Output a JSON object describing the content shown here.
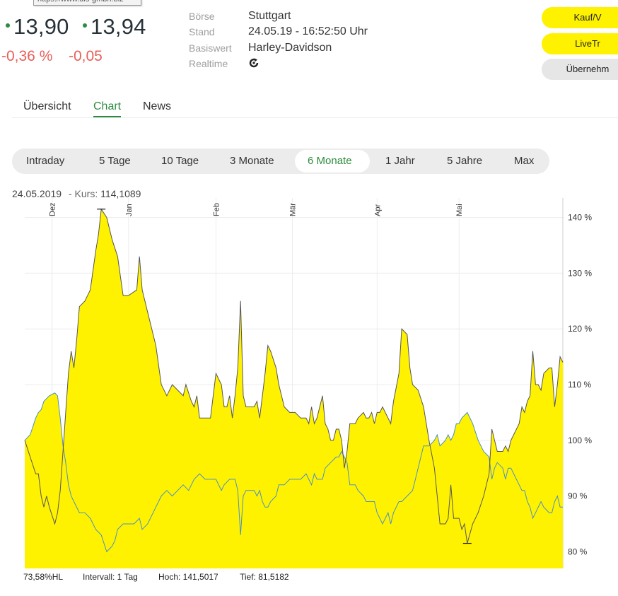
{
  "tooltip_text": "https://www.dls-gmbh.biz",
  "quote": {
    "bid": "13,90",
    "ask": "13,94",
    "change_pct": "-0,36 %",
    "change_abs": "-0,05"
  },
  "info": [
    {
      "label": "Börse",
      "value": "Stuttgart"
    },
    {
      "label": "Stand",
      "value": "24.05.19 - 16:52:50 Uhr"
    },
    {
      "label": "Basiswert",
      "value": "Harley-Davidson"
    },
    {
      "label": "Realtime",
      "value": ""
    }
  ],
  "actions": [
    "Kauf/V",
    "LiveTr",
    "Übernehm"
  ],
  "tabs": [
    "Übersicht",
    "Chart",
    "News"
  ],
  "active_tab": "Chart",
  "ranges": [
    "Intraday",
    "5 Tage",
    "10 Tage",
    "3 Monate",
    "6 Monate",
    "1 Jahr",
    "5 Jahre",
    "Max"
  ],
  "active_range": "6 Monate",
  "kurs_line": {
    "date": "24.05.2019",
    "label": "Kurs:",
    "value": "114,1089"
  },
  "footer": {
    "hl": "73,58%HL",
    "intervall": "Intervall: 1 Tag",
    "hoch": "Hoch: 141,5017",
    "tief": "Tief: 81,5182"
  },
  "colors": {
    "fill": "#fff200",
    "line_main": "#555555",
    "line_base": "#4a90c8",
    "accent": "#2e8b3e",
    "negative": "#e8605a"
  },
  "chart_data": {
    "type": "area",
    "y_axis": {
      "min": 77,
      "max": 143,
      "ticks": [
        80,
        90,
        100,
        110,
        120,
        130,
        140
      ],
      "tick_labels": [
        "80 %",
        "90 %",
        "100 %",
        "110 %",
        "120 %",
        "130 %",
        "140 %"
      ]
    },
    "month_labels": [
      {
        "label": "Dez",
        "day": 10
      },
      {
        "label": "Jan",
        "day": 38
      },
      {
        "label": "Feb",
        "day": 70
      },
      {
        "label": "Mär",
        "day": 98
      },
      {
        "label": "Apr",
        "day": 129
      },
      {
        "label": "Mai",
        "day": 159
      }
    ],
    "x_days": 186,
    "series": [
      {
        "points": [
          [
            0,
            100
          ],
          [
            2,
            97
          ],
          [
            4,
            94
          ],
          [
            5,
            94
          ],
          [
            6,
            90
          ],
          [
            7,
            88
          ],
          [
            8,
            90
          ],
          [
            9,
            88
          ],
          [
            11,
            85
          ],
          [
            12,
            87
          ],
          [
            13,
            91
          ],
          [
            14,
            98
          ],
          [
            15,
            105
          ],
          [
            16,
            112
          ],
          [
            17,
            116
          ],
          [
            18,
            113
          ],
          [
            19,
            118
          ],
          [
            20,
            124
          ],
          [
            22,
            125
          ],
          [
            24,
            127
          ],
          [
            26,
            134
          ],
          [
            27,
            137
          ],
          [
            28,
            141.5
          ],
          [
            30,
            140
          ],
          [
            32,
            136
          ],
          [
            34,
            133
          ],
          [
            36,
            126
          ],
          [
            38,
            126
          ],
          [
            41,
            127
          ],
          [
            42,
            133
          ],
          [
            43,
            127
          ],
          [
            45,
            123
          ],
          [
            48,
            117
          ],
          [
            50,
            110
          ],
          [
            52,
            108
          ],
          [
            54,
            110
          ],
          [
            56,
            109
          ],
          [
            58,
            108
          ],
          [
            59,
            110
          ],
          [
            61,
            107
          ],
          [
            62,
            106
          ],
          [
            63,
            108
          ],
          [
            64,
            104
          ],
          [
            66,
            104
          ],
          [
            68,
            104
          ],
          [
            69,
            108
          ],
          [
            70,
            112
          ],
          [
            72,
            110
          ],
          [
            73,
            106
          ],
          [
            74,
            106
          ],
          [
            75,
            108
          ],
          [
            76,
            104
          ],
          [
            77,
            108
          ],
          [
            78,
            113
          ],
          [
            79,
            125
          ],
          [
            80,
            108
          ],
          [
            81,
            106
          ],
          [
            82,
            106
          ],
          [
            84,
            106
          ],
          [
            85,
            107
          ],
          [
            86,
            104
          ],
          [
            87,
            108
          ],
          [
            88,
            112
          ],
          [
            89,
            117
          ],
          [
            90,
            116
          ],
          [
            92,
            113
          ],
          [
            93,
            110
          ],
          [
            95,
            106
          ],
          [
            97,
            105
          ],
          [
            99,
            105
          ],
          [
            101,
            104
          ],
          [
            103,
            104
          ],
          [
            104,
            103
          ],
          [
            105,
            106
          ],
          [
            106,
            103
          ],
          [
            107,
            104
          ],
          [
            109,
            108
          ],
          [
            110,
            103
          ],
          [
            111,
            102
          ],
          [
            112,
            100
          ],
          [
            113,
            100
          ],
          [
            114,
            102
          ],
          [
            115,
            102
          ],
          [
            116,
            100
          ],
          [
            117,
            95
          ],
          [
            118,
            98
          ],
          [
            119,
            103
          ],
          [
            121,
            103
          ],
          [
            122,
            104
          ],
          [
            124,
            105
          ],
          [
            125,
            104
          ],
          [
            126,
            104
          ],
          [
            127,
            105
          ],
          [
            128,
            103
          ],
          [
            129,
            105
          ],
          [
            130,
            105
          ],
          [
            131,
            106
          ],
          [
            133,
            104
          ],
          [
            134,
            103
          ],
          [
            135,
            107
          ],
          [
            137,
            112
          ],
          [
            138,
            120
          ],
          [
            140,
            119
          ],
          [
            141,
            113
          ],
          [
            142,
            110
          ],
          [
            144,
            109
          ],
          [
            146,
            106
          ],
          [
            148,
            100
          ],
          [
            150,
            95
          ],
          [
            151,
            90
          ],
          [
            152,
            85
          ],
          [
            154,
            85
          ],
          [
            155,
            86
          ],
          [
            156,
            92
          ],
          [
            157,
            86
          ],
          [
            158,
            86
          ],
          [
            159,
            86
          ],
          [
            160,
            84
          ],
          [
            161,
            85
          ],
          [
            162,
            81.5
          ],
          [
            164,
            85
          ],
          [
            166,
            87
          ],
          [
            168,
            90
          ],
          [
            170,
            94
          ],
          [
            171,
            102
          ],
          [
            172,
            100
          ],
          [
            173,
            98
          ],
          [
            175,
            98
          ],
          [
            176,
            99
          ],
          [
            177,
            98
          ],
          [
            178,
            100
          ],
          [
            179,
            101
          ],
          [
            181,
            103
          ],
          [
            182,
            106
          ],
          [
            183,
            105
          ],
          [
            184,
            107
          ],
          [
            185,
            108
          ],
          [
            186,
            116
          ],
          [
            187,
            110
          ],
          [
            188,
            110
          ],
          [
            189,
            109
          ],
          [
            190,
            112
          ],
          [
            192,
            113
          ],
          [
            193,
            113
          ],
          [
            194,
            106
          ],
          [
            195,
            110
          ],
          [
            196,
            115
          ],
          [
            197,
            114
          ]
        ]
      },
      {
        "points": [
          [
            0,
            100
          ],
          [
            2,
            101
          ],
          [
            4,
            104
          ],
          [
            5,
            105
          ],
          [
            6,
            105.5
          ],
          [
            7,
            107
          ],
          [
            9,
            108
          ],
          [
            11,
            108.5
          ],
          [
            12,
            108
          ],
          [
            13,
            104
          ],
          [
            14,
            99
          ],
          [
            15,
            96
          ],
          [
            16,
            92
          ],
          [
            17,
            90
          ],
          [
            18,
            89
          ],
          [
            20,
            87
          ],
          [
            22,
            87
          ],
          [
            24,
            86
          ],
          [
            25,
            85
          ],
          [
            26,
            84
          ],
          [
            28,
            83
          ],
          [
            30,
            80
          ],
          [
            32,
            81
          ],
          [
            33,
            82
          ],
          [
            34,
            84
          ],
          [
            36,
            85
          ],
          [
            38,
            85
          ],
          [
            40,
            85
          ],
          [
            42,
            86
          ],
          [
            43,
            84
          ],
          [
            45,
            85
          ],
          [
            48,
            88
          ],
          [
            50,
            90
          ],
          [
            52,
            91
          ],
          [
            54,
            90
          ],
          [
            56,
            91
          ],
          [
            58,
            92
          ],
          [
            60,
            91
          ],
          [
            62,
            93
          ],
          [
            64,
            94
          ],
          [
            66,
            93
          ],
          [
            68,
            93
          ],
          [
            70,
            93
          ],
          [
            72,
            91
          ],
          [
            73,
            92
          ],
          [
            75,
            93
          ],
          [
            77,
            93
          ],
          [
            78,
            91
          ],
          [
            79,
            83
          ],
          [
            80,
            90
          ],
          [
            81,
            91
          ],
          [
            82,
            91
          ],
          [
            84,
            91
          ],
          [
            85,
            90
          ],
          [
            86,
            91
          ],
          [
            87,
            89
          ],
          [
            88,
            88
          ],
          [
            89,
            88
          ],
          [
            90,
            89
          ],
          [
            92,
            90
          ],
          [
            93,
            92
          ],
          [
            95,
            92
          ],
          [
            97,
            93
          ],
          [
            99,
            93
          ],
          [
            101,
            93
          ],
          [
            103,
            94
          ],
          [
            104,
            93
          ],
          [
            105,
            92
          ],
          [
            106,
            94
          ],
          [
            107,
            93
          ],
          [
            109,
            93
          ],
          [
            110,
            95
          ],
          [
            112,
            96
          ],
          [
            114,
            97
          ],
          [
            115,
            97
          ],
          [
            116,
            98
          ],
          [
            117,
            97
          ],
          [
            118,
            96
          ],
          [
            119,
            92
          ],
          [
            121,
            92
          ],
          [
            122,
            91
          ],
          [
            124,
            90
          ],
          [
            125,
            89
          ],
          [
            126,
            89
          ],
          [
            127,
            89
          ],
          [
            128,
            89
          ],
          [
            129,
            87
          ],
          [
            131,
            85
          ],
          [
            133,
            87
          ],
          [
            134,
            85
          ],
          [
            135,
            87
          ],
          [
            137,
            89
          ],
          [
            138,
            89
          ],
          [
            140,
            90
          ],
          [
            142,
            91
          ],
          [
            144,
            95
          ],
          [
            146,
            99
          ],
          [
            148,
            99
          ],
          [
            150,
            100
          ],
          [
            151,
            101
          ],
          [
            152,
            99
          ],
          [
            154,
            100
          ],
          [
            155,
            101
          ],
          [
            156,
            100
          ],
          [
            157,
            101
          ],
          [
            158,
            103
          ],
          [
            159,
            103
          ],
          [
            160,
            104
          ],
          [
            162,
            105
          ],
          [
            164,
            103
          ],
          [
            166,
            100
          ],
          [
            168,
            98
          ],
          [
            170,
            97
          ],
          [
            171,
            93
          ],
          [
            172,
            95
          ],
          [
            173,
            96
          ],
          [
            175,
            95
          ],
          [
            176,
            93
          ],
          [
            177,
            95
          ],
          [
            178,
            95
          ],
          [
            179,
            94
          ],
          [
            181,
            92
          ],
          [
            182,
            91
          ],
          [
            183,
            91
          ],
          [
            184,
            89
          ],
          [
            185,
            88
          ],
          [
            186,
            86
          ],
          [
            187,
            87
          ],
          [
            188,
            88
          ],
          [
            189,
            89
          ],
          [
            190,
            88
          ],
          [
            192,
            87
          ],
          [
            193,
            87
          ],
          [
            194,
            89
          ],
          [
            195,
            90
          ],
          [
            196,
            88
          ],
          [
            197,
            88
          ]
        ]
      }
    ],
    "high_marker": {
      "day": 28,
      "value": 141.5
    },
    "low_marker": {
      "day": 162,
      "value": 81.5
    }
  }
}
